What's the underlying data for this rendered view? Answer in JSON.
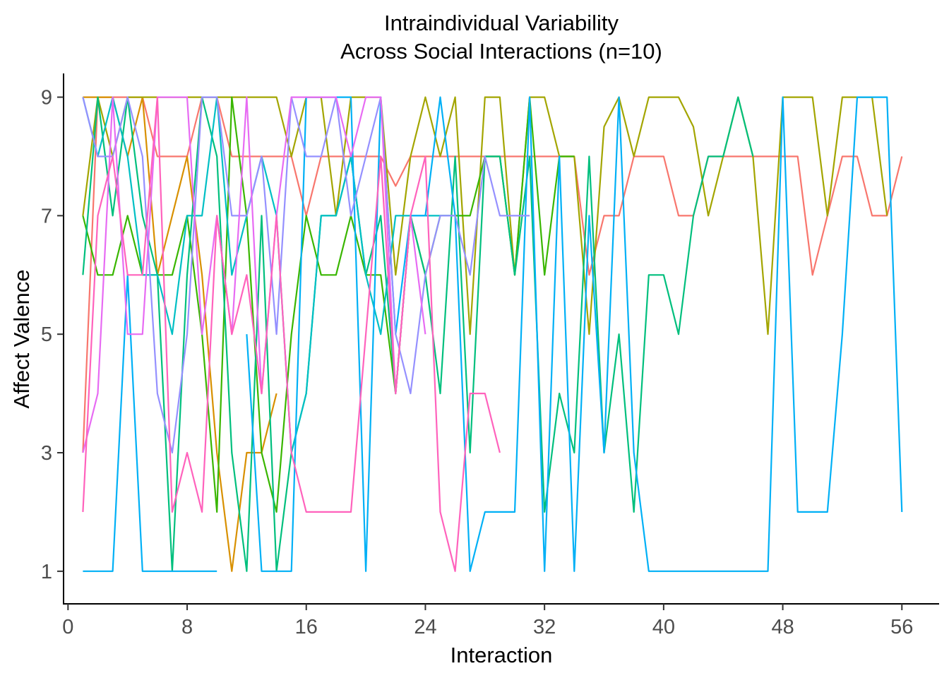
{
  "chart_data": {
    "type": "line",
    "title": "Intraindividual Variability",
    "subtitle": "Across Social Interactions (n=10)",
    "xlabel": "Interaction",
    "ylabel": "Affect Valence",
    "xlim": [
      -0.3,
      58.5
    ],
    "ylim": [
      0.45,
      9.4
    ],
    "xticks": [
      0,
      8,
      16,
      24,
      32,
      40,
      48,
      56
    ],
    "yticks": [
      1,
      3,
      5,
      7,
      9
    ],
    "grid": false,
    "legend": "none",
    "series": [
      {
        "color": "#F8766D",
        "x": [
          1,
          2,
          3,
          4,
          5,
          6,
          7,
          8,
          9,
          10,
          11,
          12,
          13,
          14,
          15,
          16,
          17,
          18,
          19,
          20,
          21,
          22,
          23,
          24,
          25,
          26,
          27,
          28,
          29,
          30,
          31,
          32,
          33,
          34,
          35,
          36,
          37,
          38,
          39,
          40,
          41,
          42,
          43,
          44,
          45,
          46,
          47,
          48,
          49,
          50,
          51,
          52,
          53,
          54,
          55,
          56
        ],
        "y": [
          3,
          9,
          9,
          9,
          9,
          8,
          8,
          8,
          9,
          9,
          8,
          8,
          8,
          8,
          8,
          7,
          8,
          8,
          8,
          8,
          8,
          7.5,
          8,
          8,
          8,
          8,
          8,
          8,
          8,
          8,
          8,
          8,
          8,
          8,
          6,
          7,
          7,
          8,
          8,
          8,
          7,
          7,
          8,
          8,
          8,
          8,
          8,
          8,
          8,
          6,
          7,
          8,
          8,
          7,
          7,
          8
        ]
      },
      {
        "color": "#D89000",
        "x": [
          1,
          2,
          3,
          4,
          5,
          6,
          7,
          8,
          9,
          10,
          11,
          12,
          13,
          14
        ],
        "y": [
          9,
          9,
          9,
          8,
          9,
          6,
          7,
          8,
          6,
          3,
          1,
          3,
          3,
          4
        ]
      },
      {
        "color": "#A3A500",
        "x": [
          1,
          2,
          3,
          4,
          5,
          6,
          7,
          8,
          9,
          10,
          11,
          12,
          13,
          14,
          15,
          16,
          17,
          18,
          19,
          20,
          21,
          22,
          23,
          24,
          25,
          26,
          27,
          28,
          29,
          30,
          31,
          32,
          33,
          34,
          35,
          36,
          37,
          38,
          39,
          40,
          41,
          42,
          43,
          44,
          45,
          46,
          47,
          48,
          49,
          50,
          51,
          52,
          53,
          54,
          55
        ],
        "y": [
          7,
          9,
          8,
          9,
          9,
          9,
          9,
          9,
          9,
          9,
          9,
          9,
          9,
          9,
          8,
          9,
          9,
          7,
          9,
          9,
          9,
          6,
          8,
          9,
          8,
          9,
          5,
          9,
          9,
          6,
          9,
          9,
          8,
          8,
          5,
          8.5,
          9,
          8,
          9,
          9,
          9,
          8.5,
          7,
          8,
          9,
          8,
          5,
          9,
          9,
          9,
          7,
          9,
          9,
          9,
          7
        ]
      },
      {
        "color": "#39B600",
        "x": [
          1,
          2,
          3,
          4,
          5,
          6,
          7,
          8,
          9,
          10,
          11,
          12,
          13,
          14,
          15,
          16,
          17,
          18,
          19,
          20,
          21,
          22,
          23,
          24,
          25,
          26,
          27,
          28,
          29,
          30,
          31,
          32,
          33,
          34
        ],
        "y": [
          7,
          6,
          6,
          7,
          6,
          6,
          6,
          7,
          5,
          2,
          9,
          7,
          3,
          2,
          5,
          7,
          6,
          6,
          7,
          6,
          6,
          4,
          7,
          6,
          7,
          7,
          7,
          8,
          8,
          6,
          9,
          6,
          8,
          8
        ]
      },
      {
        "color": "#00BF7D",
        "x": [
          1,
          2,
          3,
          4,
          5,
          6,
          7,
          8,
          9,
          10,
          11,
          12,
          13,
          14,
          15,
          16,
          17,
          18,
          19,
          20,
          21,
          22,
          23,
          24,
          25,
          26,
          27,
          28,
          29,
          30,
          31,
          32,
          33,
          34,
          35,
          36,
          37,
          38,
          39,
          40,
          41,
          42,
          43,
          44,
          45,
          46
        ],
        "y": [
          6,
          9,
          7,
          9,
          7,
          6,
          1,
          6,
          9,
          8,
          3,
          1,
          7,
          1,
          3,
          4,
          7,
          7,
          8,
          6,
          7,
          4,
          7,
          6,
          4,
          8,
          3,
          8,
          8,
          6,
          8,
          2,
          4,
          3,
          8,
          3,
          5,
          2,
          6,
          6,
          5,
          7,
          8,
          8,
          9,
          8
        ]
      },
      {
        "color": "#00BFC4",
        "x": [
          1,
          2,
          3,
          4,
          5,
          6,
          7,
          8,
          9,
          10,
          11,
          12,
          13,
          14,
          15,
          16,
          17,
          18,
          19,
          20,
          21,
          22,
          23,
          24,
          25,
          26
        ],
        "y": [
          9,
          8,
          9,
          8,
          6,
          6,
          5,
          7,
          7,
          9,
          6,
          7,
          8,
          7,
          3,
          4,
          7,
          7,
          8,
          6,
          5,
          7,
          7,
          7,
          7,
          7
        ]
      },
      {
        "color": "#00B0F6",
        "x": [
          1,
          2,
          3,
          4,
          5,
          6,
          7,
          8,
          9,
          10,
          12,
          13,
          14,
          15,
          16,
          17,
          18,
          19,
          20,
          21,
          22,
          23,
          24,
          25,
          26,
          27,
          28,
          29,
          30,
          31,
          32,
          33,
          34,
          35,
          36,
          37,
          38,
          39,
          40,
          41,
          42,
          43,
          44,
          45,
          46,
          47,
          48,
          49,
          50,
          51,
          52,
          53,
          54,
          55,
          56
        ],
        "y": [
          1,
          1,
          1,
          6,
          1,
          1,
          1,
          1,
          1,
          1,
          5,
          1,
          1,
          1,
          9,
          9,
          9,
          9,
          1,
          9,
          5,
          7,
          7,
          9,
          7,
          1,
          2,
          2,
          2,
          9,
          1,
          8,
          1,
          7,
          3,
          9,
          3,
          1,
          1,
          1,
          1,
          1,
          1,
          1,
          1,
          1,
          9,
          2,
          2,
          2,
          5,
          9,
          9,
          9,
          2
        ]
      },
      {
        "color": "#9590FF",
        "x": [
          1,
          2,
          3,
          4,
          5,
          6,
          7,
          8,
          9,
          10,
          11,
          12,
          13,
          14,
          15,
          16,
          17,
          18,
          19,
          20,
          21,
          22,
          23,
          24,
          25,
          26,
          27,
          28,
          29,
          30,
          31
        ],
        "y": [
          9,
          8,
          8,
          9,
          8,
          4,
          3,
          5,
          9,
          9,
          7,
          7,
          8,
          5,
          9,
          8,
          8,
          9,
          7,
          8,
          9,
          5,
          4,
          6,
          7,
          7,
          6,
          8,
          7,
          7,
          7
        ]
      },
      {
        "color": "#E76BF3",
        "x": [
          1,
          2,
          3,
          4,
          5,
          6,
          7,
          8,
          9,
          10,
          11,
          12,
          13,
          14,
          15,
          16,
          17,
          18,
          19,
          20,
          21,
          22,
          23,
          24
        ],
        "y": [
          3,
          4,
          9,
          5,
          5,
          9,
          9,
          9,
          5,
          7,
          5,
          9,
          4,
          7,
          9,
          9,
          9,
          9,
          8,
          9,
          9,
          4,
          7,
          5
        ]
      },
      {
        "color": "#FF62BC",
        "x": [
          1,
          2,
          3,
          4,
          5,
          6,
          7,
          8,
          9,
          10,
          11,
          12,
          13,
          14,
          15,
          16,
          17,
          18,
          19,
          20,
          21,
          22,
          23,
          24,
          25,
          26,
          27,
          28,
          29
        ],
        "y": [
          2,
          7,
          8,
          6,
          6,
          9,
          2,
          3,
          2,
          7,
          5,
          6,
          4,
          7,
          3,
          2,
          2,
          2,
          2,
          5,
          8,
          4,
          7,
          8,
          2,
          1,
          4,
          4,
          3
        ]
      }
    ]
  }
}
